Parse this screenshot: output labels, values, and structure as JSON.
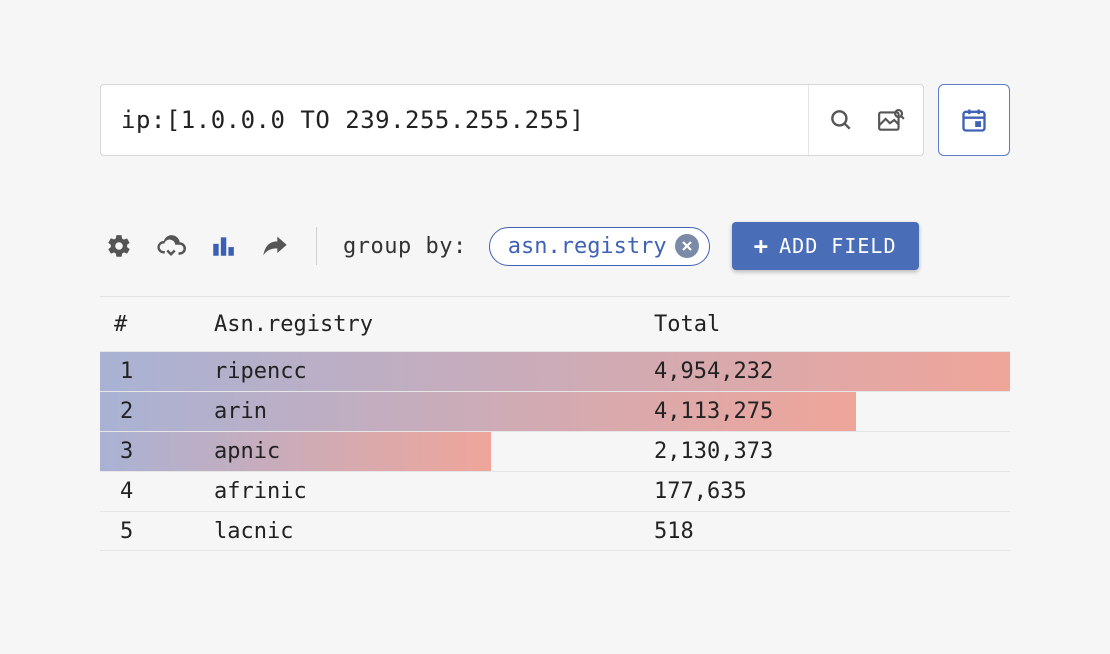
{
  "search": {
    "value": "ip:[1.0.0.0 TO 239.255.255.255]"
  },
  "toolbar": {
    "group_by_label": "group by:",
    "chip_label": "asn.registry",
    "add_field_label": "ADD FIELD"
  },
  "table": {
    "columns": {
      "index": "#",
      "name": "Asn.registry",
      "total": "Total"
    },
    "max_value": 4954232,
    "bar_gradient": {
      "from": "#a9b2d4",
      "to": "#efa59a"
    },
    "rows": [
      {
        "idx": "1",
        "name": "ripencc",
        "total_raw": 4954232,
        "total": "4,954,232"
      },
      {
        "idx": "2",
        "name": "arin",
        "total_raw": 4113275,
        "total": "4,113,275"
      },
      {
        "idx": "3",
        "name": "apnic",
        "total_raw": 2130373,
        "total": "2,130,373"
      },
      {
        "idx": "4",
        "name": "afrinic",
        "total_raw": 177635,
        "total": "177,635"
      },
      {
        "idx": "5",
        "name": "lacnic",
        "total_raw": 518,
        "total": "518"
      }
    ]
  },
  "colors": {
    "accent": "#4a6db8",
    "border": "#d8d8d8",
    "background": "#f6f6f6",
    "text": "#222222"
  }
}
